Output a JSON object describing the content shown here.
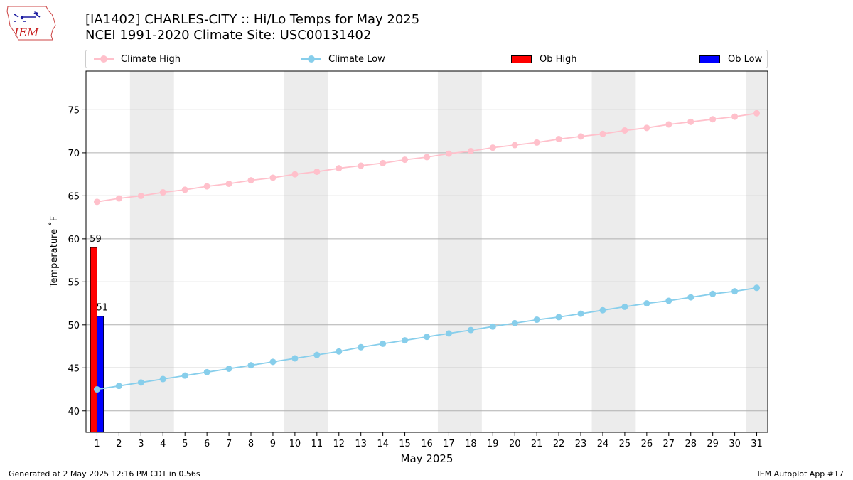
{
  "header": {
    "title_line1": "[IA1402] CHARLES-CITY :: Hi/Lo Temps for May 2025",
    "title_line2": "NCEI 1991-2020 Climate Site: USC00131402"
  },
  "logo": {
    "text": "IEM",
    "icon": "iem-iowa-logo-icon"
  },
  "legend": {
    "placement": "top, above plot",
    "items": [
      {
        "label": "Climate High",
        "kind": "line",
        "color": "#ffc0cb"
      },
      {
        "label": "Climate Low",
        "kind": "line",
        "color": "#87ceeb"
      },
      {
        "label": "Ob High",
        "kind": "patch",
        "color": "#ff0000"
      },
      {
        "label": "Ob Low",
        "kind": "patch",
        "color": "#0000ff"
      }
    ]
  },
  "footer": {
    "generated": "Generated at 2 May 2025 12:16 PM CDT in 0.56s",
    "app": "IEM Autoplot App #17"
  },
  "chart_data": {
    "type": "bar",
    "title": "[IA1402] CHARLES-CITY :: Hi/Lo Temps for May 2025",
    "subtitle": "NCEI 1991-2020 Climate Site: USC00131402",
    "xlabel": "May 2025",
    "ylabel": "Temperature ˚F",
    "xlim": [
      0.5,
      31.5
    ],
    "ylim": [
      37.5,
      79.5
    ],
    "x_ticks": [
      1,
      2,
      3,
      4,
      5,
      6,
      7,
      8,
      9,
      10,
      11,
      12,
      13,
      14,
      15,
      16,
      17,
      18,
      19,
      20,
      21,
      22,
      23,
      24,
      25,
      26,
      27,
      28,
      29,
      30,
      31
    ],
    "y_ticks": [
      40,
      45,
      50,
      55,
      60,
      65,
      70,
      75
    ],
    "grid": "horizontal",
    "weekend_shading": [
      [
        2.5,
        4.5
      ],
      [
        9.5,
        11.5
      ],
      [
        16.5,
        18.5
      ],
      [
        23.5,
        25.5
      ],
      [
        30.5,
        31.5
      ]
    ],
    "shade_color": "#ececec",
    "series": [
      {
        "name": "Climate High",
        "kind": "line",
        "color": "#ffc0cb",
        "x": [
          1,
          2,
          3,
          4,
          5,
          6,
          7,
          8,
          9,
          10,
          11,
          12,
          13,
          14,
          15,
          16,
          17,
          18,
          19,
          20,
          21,
          22,
          23,
          24,
          25,
          26,
          27,
          28,
          29,
          30,
          31
        ],
        "values": [
          64.3,
          64.7,
          65.0,
          65.4,
          65.7,
          66.1,
          66.4,
          66.8,
          67.1,
          67.5,
          67.8,
          68.2,
          68.5,
          68.8,
          69.2,
          69.5,
          69.9,
          70.2,
          70.6,
          70.9,
          71.2,
          71.6,
          71.9,
          72.2,
          72.6,
          72.9,
          73.3,
          73.6,
          73.9,
          74.2,
          74.6
        ]
      },
      {
        "name": "Climate Low",
        "kind": "line",
        "color": "#87ceeb",
        "x": [
          1,
          2,
          3,
          4,
          5,
          6,
          7,
          8,
          9,
          10,
          11,
          12,
          13,
          14,
          15,
          16,
          17,
          18,
          19,
          20,
          21,
          22,
          23,
          24,
          25,
          26,
          27,
          28,
          29,
          30,
          31
        ],
        "values": [
          42.5,
          42.9,
          43.3,
          43.7,
          44.1,
          44.5,
          44.9,
          45.3,
          45.7,
          46.1,
          46.5,
          46.9,
          47.4,
          47.8,
          48.2,
          48.6,
          49.0,
          49.4,
          49.8,
          50.2,
          50.6,
          50.9,
          51.3,
          51.7,
          52.1,
          52.5,
          52.8,
          53.2,
          53.6,
          53.9,
          54.3
        ]
      },
      {
        "name": "Ob High",
        "kind": "bar",
        "color": "#ff0000",
        "x": [
          1
        ],
        "values": [
          59
        ],
        "labels": [
          "59"
        ]
      },
      {
        "name": "Ob Low",
        "kind": "bar",
        "color": "#0000ff",
        "x": [
          1
        ],
        "values": [
          51
        ],
        "labels": [
          "51"
        ]
      }
    ]
  }
}
